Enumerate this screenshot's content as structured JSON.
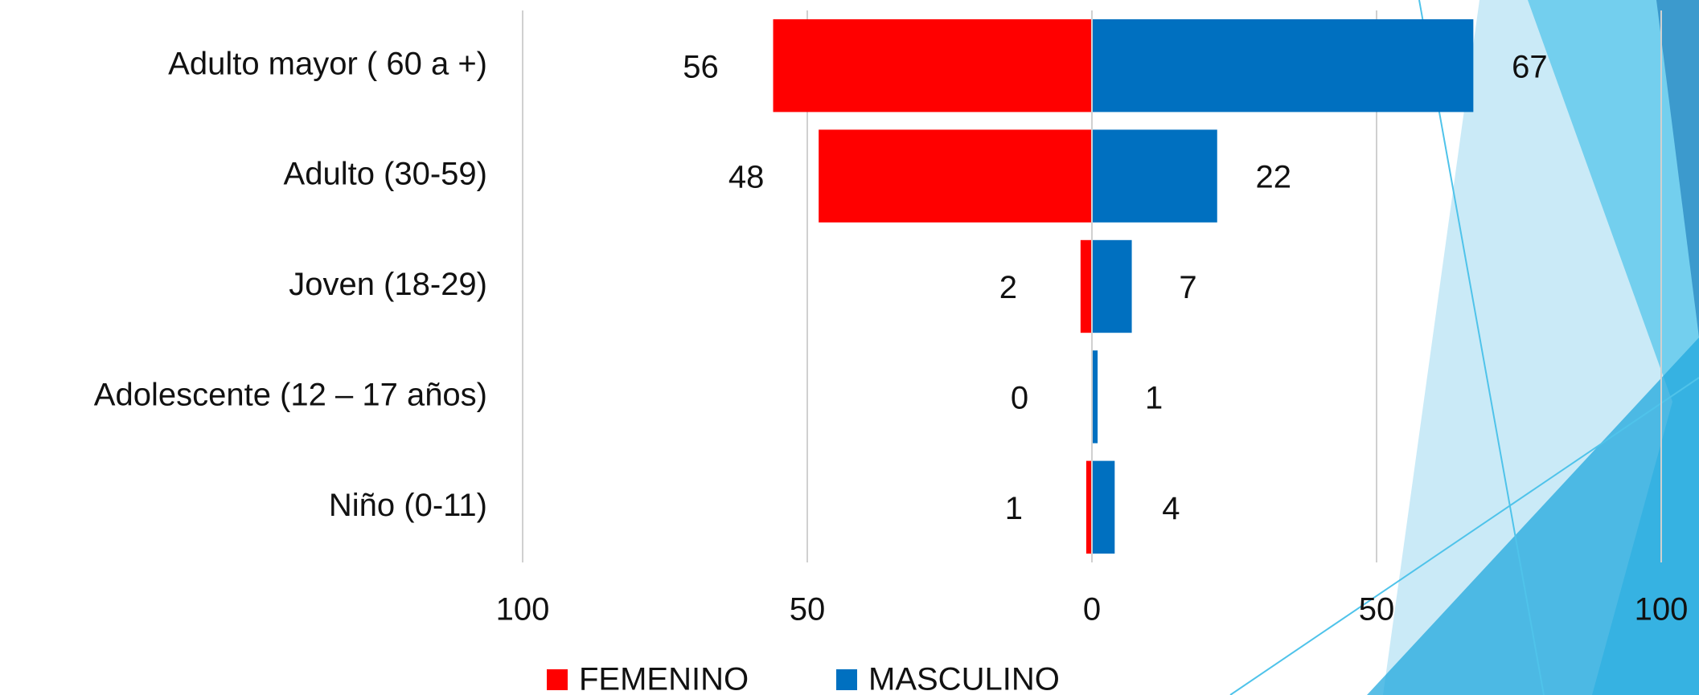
{
  "chart_data": {
    "type": "pyramid",
    "categories": [
      "Adulto mayor ( 60 a +)",
      "Adulto (30-59)",
      "Joven (18-29)",
      "Adolescente (12 – 17 años)",
      "Niño (0-11)"
    ],
    "series": [
      {
        "name": "FEMENINO",
        "color": "#ff0000",
        "values": [
          56,
          48,
          2,
          0,
          1
        ]
      },
      {
        "name": "MASCULINO",
        "color": "#0070c0",
        "values": [
          67,
          22,
          7,
          1,
          4
        ]
      }
    ],
    "xlim": [
      -100,
      100
    ],
    "xticks": [
      {
        "value": -100,
        "label": "100"
      },
      {
        "value": -50,
        "label": "50"
      },
      0,
      50,
      100
    ],
    "grid": true,
    "legend": "bottom"
  }
}
